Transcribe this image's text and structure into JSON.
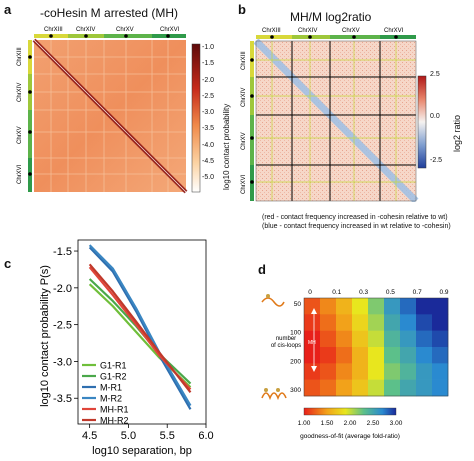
{
  "panels": {
    "a": {
      "letter": "a",
      "title": "-coHesin M arrested (MH)",
      "chromosomes": [
        "ChrXIII",
        "ChrXIV",
        "ChrXV",
        "ChrXVI"
      ],
      "colorbar": {
        "ticks": [
          "-1.0",
          "-1.5",
          "-2.0",
          "-2.5",
          "-3.0",
          "-3.5",
          "-4.0",
          "-4.5",
          "-5.0"
        ],
        "label": "log10 contact probability"
      }
    },
    "b": {
      "letter": "b",
      "title": "MH/M log2ratio",
      "chromosomes": [
        "ChrXIII",
        "ChrXIV",
        "ChrXV",
        "ChrXVI"
      ],
      "colorbar": {
        "ticks": [
          "2.5",
          "0.0",
          "-2.5"
        ],
        "label": "log2 ratio"
      },
      "caption_red": "(red - contact frequency increased  in -cohesin relative to wt)",
      "caption_blue": "(blue - contact frequency increased  in wt relative to -cohesin)"
    },
    "d": {
      "letter": "d",
      "ylabel_1": "number",
      "ylabel_2": "of cis-loops",
      "inner_label": "MH",
      "colorbar_ticks": [
        "1.00",
        "1.50",
        "2.00",
        "2.50",
        "3.00"
      ],
      "colorbar_label": "goodness-of-fit (average fold-ratio)"
    }
  },
  "chart_data": [
    {
      "type": "line",
      "panel": "c",
      "letter": "c",
      "xlabel": "log10 separation, bp",
      "ylabel": "log10 contact probability P(s)",
      "xlim": [
        4.35,
        6.0
      ],
      "ylim": [
        -3.85,
        -1.35
      ],
      "xticks": [
        "4.5",
        "5.0",
        "5.5",
        "6.0"
      ],
      "yticks": [
        "-1.5",
        "-2.0",
        "-2.5",
        "-3.0",
        "-3.5"
      ],
      "legend_position": "lower-left",
      "series": [
        {
          "name": "G1-R1",
          "color": "#6fbf3a",
          "x": [
            4.5,
            4.8,
            5.1,
            5.4,
            5.8
          ],
          "y": [
            -1.95,
            -2.25,
            -2.6,
            -2.95,
            -3.35
          ]
        },
        {
          "name": "G1-R2",
          "color": "#4aa84a",
          "x": [
            4.5,
            4.8,
            5.1,
            5.4,
            5.8
          ],
          "y": [
            -1.88,
            -2.18,
            -2.52,
            -2.9,
            -3.3
          ]
        },
        {
          "name": "M-R1",
          "color": "#2f6fb0",
          "x": [
            4.5,
            4.8,
            5.1,
            5.4,
            5.8
          ],
          "y": [
            -1.45,
            -1.78,
            -2.32,
            -2.92,
            -3.65
          ]
        },
        {
          "name": "M-R2",
          "color": "#3a86c2",
          "x": [
            4.5,
            4.8,
            5.1,
            5.4,
            5.8
          ],
          "y": [
            -1.42,
            -1.74,
            -2.28,
            -2.88,
            -3.6
          ]
        },
        {
          "name": "MH-R1",
          "color": "#e0453a",
          "x": [
            4.5,
            4.8,
            5.1,
            5.4,
            5.8
          ],
          "y": [
            -1.72,
            -2.1,
            -2.5,
            -2.92,
            -3.38
          ]
        },
        {
          "name": "MH-R2",
          "color": "#c0392b",
          "x": [
            4.5,
            4.8,
            5.1,
            5.4,
            5.8
          ],
          "y": [
            -1.68,
            -2.05,
            -2.46,
            -2.88,
            -3.42
          ]
        }
      ]
    },
    {
      "type": "heatmap",
      "panel": "d",
      "xticks": [
        "0",
        "0.1",
        "0.3",
        "0.5",
        "0.7",
        "0.9"
      ],
      "yticks": [
        "50",
        "100",
        "200",
        "300"
      ],
      "values": [
        [
          1.2,
          1.4,
          1.6,
          1.9,
          2.2,
          2.6,
          2.8,
          3.0,
          3.0
        ],
        [
          1.1,
          1.3,
          1.5,
          1.8,
          2.1,
          2.5,
          2.7,
          2.9,
          3.0
        ],
        [
          1.0,
          1.2,
          1.4,
          1.7,
          2.0,
          2.4,
          2.6,
          2.8,
          2.9
        ],
        [
          1.0,
          1.1,
          1.3,
          1.6,
          1.9,
          2.3,
          2.5,
          2.7,
          2.8
        ],
        [
          1.1,
          1.2,
          1.4,
          1.6,
          1.9,
          2.2,
          2.4,
          2.6,
          2.7
        ],
        [
          1.2,
          1.3,
          1.5,
          1.7,
          2.0,
          2.3,
          2.5,
          2.6,
          2.7
        ]
      ]
    }
  ]
}
